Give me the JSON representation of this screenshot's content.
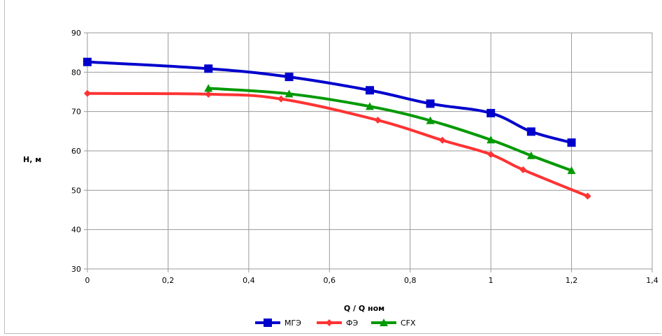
{
  "chart_data": {
    "type": "line",
    "title": "",
    "xlabel": "Q / Q ном",
    "ylabel": "H, м",
    "xlim": [
      0,
      1.4
    ],
    "ylim": [
      30,
      90
    ],
    "x_ticks": [
      "0",
      "0,2",
      "0,4",
      "0,6",
      "0,8",
      "1",
      "1,2",
      "1,4"
    ],
    "y_ticks": [
      "30",
      "40",
      "50",
      "60",
      "70",
      "80",
      "90"
    ],
    "grid": true,
    "legend_position": "bottom",
    "series": [
      {
        "name": "МГЭ",
        "color": "#0000cc",
        "marker": "square",
        "x": [
          0,
          0.3,
          0.5,
          0.7,
          0.85,
          1.0,
          1.1,
          1.2
        ],
        "y": [
          82.6,
          80.9,
          78.8,
          75.4,
          72.0,
          69.6,
          64.9,
          62.1
        ]
      },
      {
        "name": "ФЭ",
        "color": "#ff3333",
        "marker": "diamond",
        "x": [
          0,
          0.3,
          0.48,
          0.72,
          0.88,
          1.0,
          1.08,
          1.24
        ],
        "y": [
          74.6,
          74.4,
          73.2,
          67.8,
          62.7,
          59.1,
          55.2,
          48.5
        ]
      },
      {
        "name": "CFX",
        "color": "#009900",
        "marker": "triangle",
        "x": [
          0.3,
          0.5,
          0.7,
          0.85,
          1.0,
          1.1,
          1.2
        ],
        "y": [
          75.9,
          74.5,
          71.3,
          67.7,
          62.8,
          58.8,
          55.0
        ]
      }
    ]
  }
}
